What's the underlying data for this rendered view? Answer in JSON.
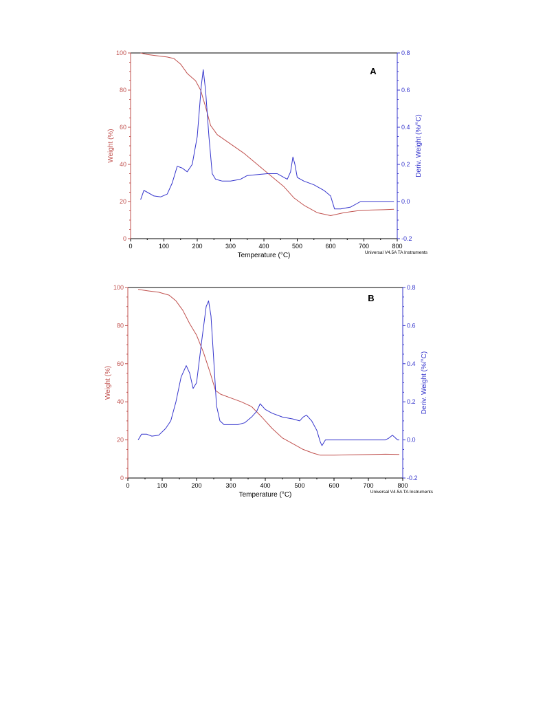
{
  "colors": {
    "weight": "#c0504d",
    "deriv": "#3333cc",
    "axis": "#000000"
  },
  "chart_data": [
    {
      "type": "line",
      "panel_label": "A",
      "xlabel": "Temperature (°C)",
      "ylabel_left": "Weight (%)",
      "ylabel_right": "Deriv. Weight (%/°C)",
      "footer": "Universal V4.5A TA Instruments",
      "xlim": [
        0,
        800
      ],
      "ylim_left": [
        0,
        100
      ],
      "ylim_right": [
        -0.2,
        0.8
      ],
      "x_ticks": [
        "0",
        "100",
        "200",
        "300",
        "400",
        "500",
        "600",
        "700",
        "800"
      ],
      "y_left_ticks": [
        "0",
        "20",
        "40",
        "60",
        "80",
        "100"
      ],
      "y_right_ticks": [
        "-0.2",
        "0.0",
        "0.2",
        "0.4",
        "0.6",
        "0.8"
      ],
      "series": [
        {
          "axis": "left",
          "color": "#c0504d",
          "points": [
            [
              30,
              100
            ],
            [
              50,
              99.2
            ],
            [
              80,
              98.5
            ],
            [
              110,
              97.8
            ],
            [
              130,
              97
            ],
            [
              150,
              94
            ],
            [
              170,
              89
            ],
            [
              195,
              85
            ],
            [
              210,
              80
            ],
            [
              225,
              71
            ],
            [
              240,
              61
            ],
            [
              260,
              56
            ],
            [
              300,
              51
            ],
            [
              340,
              46
            ],
            [
              380,
              40
            ],
            [
              420,
              34
            ],
            [
              460,
              28
            ],
            [
              490,
              22
            ],
            [
              520,
              18
            ],
            [
              560,
              14
            ],
            [
              600,
              12.4
            ],
            [
              640,
              14
            ],
            [
              680,
              15
            ],
            [
              720,
              15.4
            ],
            [
              760,
              15.6
            ],
            [
              790,
              15.8
            ]
          ]
        },
        {
          "axis": "right",
          "color": "#3333cc",
          "points": [
            [
              30,
              0.01
            ],
            [
              40,
              0.06
            ],
            [
              50,
              0.05
            ],
            [
              70,
              0.03
            ],
            [
              90,
              0.025
            ],
            [
              110,
              0.04
            ],
            [
              125,
              0.1
            ],
            [
              140,
              0.19
            ],
            [
              155,
              0.18
            ],
            [
              170,
              0.16
            ],
            [
              185,
              0.2
            ],
            [
              200,
              0.35
            ],
            [
              212,
              0.62
            ],
            [
              218,
              0.71
            ],
            [
              225,
              0.6
            ],
            [
              235,
              0.35
            ],
            [
              245,
              0.15
            ],
            [
              255,
              0.12
            ],
            [
              275,
              0.11
            ],
            [
              300,
              0.11
            ],
            [
              330,
              0.12
            ],
            [
              350,
              0.14
            ],
            [
              380,
              0.145
            ],
            [
              410,
              0.15
            ],
            [
              440,
              0.15
            ],
            [
              460,
              0.13
            ],
            [
              470,
              0.12
            ],
            [
              480,
              0.16
            ],
            [
              487,
              0.24
            ],
            [
              493,
              0.2
            ],
            [
              500,
              0.13
            ],
            [
              520,
              0.11
            ],
            [
              550,
              0.09
            ],
            [
              580,
              0.06
            ],
            [
              600,
              0.03
            ],
            [
              612,
              -0.04
            ],
            [
              630,
              -0.04
            ],
            [
              660,
              -0.03
            ],
            [
              690,
              0.0
            ],
            [
              720,
              0.0
            ],
            [
              750,
              0.0
            ],
            [
              780,
              0.0
            ],
            [
              790,
              0.0
            ]
          ]
        }
      ]
    },
    {
      "type": "line",
      "panel_label": "B",
      "xlabel": "Temperature (°C)",
      "ylabel_left": "Weight (%)",
      "ylabel_right": "Deriv. Weight (%/°C)",
      "footer": "Universal V4.5A TA Instruments",
      "xlim": [
        0,
        800
      ],
      "ylim_left": [
        0,
        100
      ],
      "ylim_right": [
        -0.2,
        0.8
      ],
      "x_ticks": [
        "0",
        "100",
        "200",
        "300",
        "400",
        "500",
        "600",
        "700",
        "800"
      ],
      "y_left_ticks": [
        "0",
        "20",
        "40",
        "60",
        "80",
        "100"
      ],
      "y_right_ticks": [
        "-0.2",
        "0.0",
        "0.2",
        "0.4",
        "0.6",
        "0.8"
      ],
      "series": [
        {
          "axis": "left",
          "color": "#c0504d",
          "points": [
            [
              30,
              99
            ],
            [
              60,
              98.2
            ],
            [
              90,
              97.5
            ],
            [
              120,
              96
            ],
            [
              140,
              93
            ],
            [
              160,
              88
            ],
            [
              180,
              81
            ],
            [
              200,
              75
            ],
            [
              220,
              66
            ],
            [
              240,
              55
            ],
            [
              255,
              46
            ],
            [
              270,
              44
            ],
            [
              300,
              42
            ],
            [
              330,
              40
            ],
            [
              360,
              37.5
            ],
            [
              390,
              32
            ],
            [
              420,
              26
            ],
            [
              450,
              21
            ],
            [
              480,
              18
            ],
            [
              510,
              15
            ],
            [
              540,
              13
            ],
            [
              560,
              12
            ],
            [
              600,
              12
            ],
            [
              650,
              12.2
            ],
            [
              700,
              12.3
            ],
            [
              750,
              12.5
            ],
            [
              790,
              12.4
            ]
          ]
        },
        {
          "axis": "right",
          "color": "#3333cc",
          "points": [
            [
              30,
              0.0
            ],
            [
              40,
              0.03
            ],
            [
              55,
              0.03
            ],
            [
              70,
              0.02
            ],
            [
              90,
              0.025
            ],
            [
              110,
              0.06
            ],
            [
              125,
              0.1
            ],
            [
              140,
              0.2
            ],
            [
              155,
              0.33
            ],
            [
              170,
              0.39
            ],
            [
              180,
              0.35
            ],
            [
              190,
              0.27
            ],
            [
              200,
              0.3
            ],
            [
              215,
              0.52
            ],
            [
              228,
              0.7
            ],
            [
              235,
              0.73
            ],
            [
              242,
              0.65
            ],
            [
              250,
              0.42
            ],
            [
              258,
              0.18
            ],
            [
              268,
              0.1
            ],
            [
              280,
              0.08
            ],
            [
              300,
              0.08
            ],
            [
              320,
              0.08
            ],
            [
              340,
              0.09
            ],
            [
              360,
              0.12
            ],
            [
              375,
              0.15
            ],
            [
              385,
              0.19
            ],
            [
              400,
              0.16
            ],
            [
              420,
              0.14
            ],
            [
              450,
              0.12
            ],
            [
              480,
              0.11
            ],
            [
              500,
              0.1
            ],
            [
              510,
              0.12
            ],
            [
              520,
              0.13
            ],
            [
              535,
              0.1
            ],
            [
              550,
              0.05
            ],
            [
              560,
              -0.01
            ],
            [
              565,
              -0.03
            ],
            [
              575,
              0.0
            ],
            [
              600,
              0.0
            ],
            [
              650,
              0.0
            ],
            [
              700,
              0.0
            ],
            [
              750,
              0.0
            ],
            [
              760,
              0.01
            ],
            [
              770,
              0.025
            ],
            [
              785,
              0.0
            ],
            [
              790,
              0.0
            ]
          ]
        }
      ]
    }
  ]
}
